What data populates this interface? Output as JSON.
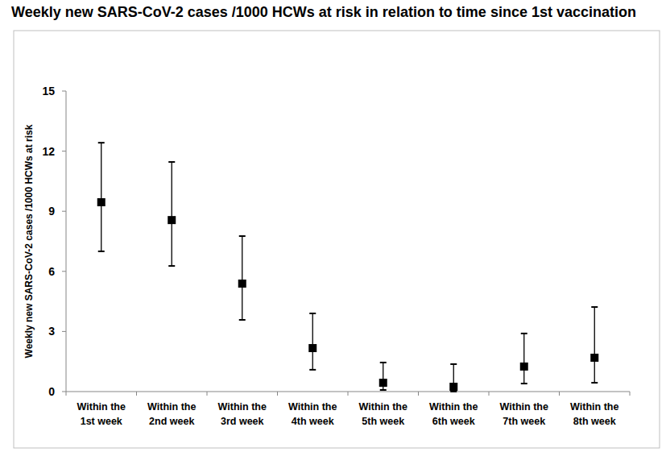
{
  "chart_data": {
    "type": "scatter",
    "title": "Weekly new SARS-CoV-2 cases /1000 HCWs at risk in relation to time since 1st vaccination",
    "y_label": "Weekly new SARS-CoV-2 cases /1000 HCWs at risk",
    "categories": [
      "Within the 1st week",
      "Within the 2nd week",
      "Within the 3rd week",
      "Within the 4th week",
      "Within the 5th week",
      "Within the 6th week",
      "Within the 7th week",
      "Within the 8th week"
    ],
    "values": [
      9.45,
      8.56,
      5.39,
      2.17,
      0.44,
      0.24,
      1.25,
      1.69
    ],
    "lower": [
      7.0,
      6.27,
      3.58,
      1.09,
      0.08,
      0.0,
      0.4,
      0.44
    ],
    "upper": [
      12.42,
      11.46,
      7.76,
      3.9,
      1.45,
      1.37,
      2.9,
      4.22
    ],
    "color": "#000000",
    "marker": "square",
    "ylim": [
      0,
      15
    ],
    "yticks": [
      0,
      3,
      6,
      9,
      12,
      15
    ],
    "grid": false
  }
}
